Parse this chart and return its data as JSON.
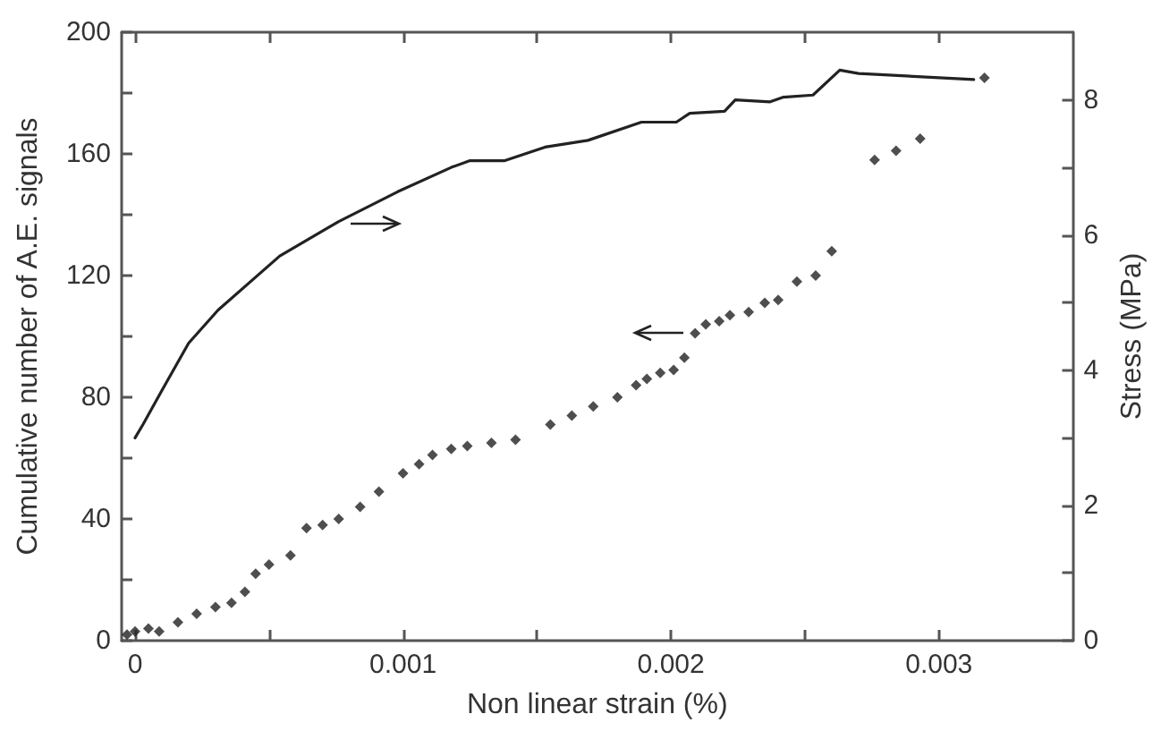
{
  "chart_data": {
    "type": "scatter",
    "xlabel": "Non linear strain (%)",
    "ylabel": "Cumulative number of A.E. signals",
    "y2label": "Stress (MPa)",
    "xlim": [
      -5e-05,
      0.0035
    ],
    "xticks": [
      0,
      {
        "value": 0.0005,
        "label": null
      },
      0.001,
      {
        "value": 0.0015,
        "label": null
      },
      0.002,
      {
        "value": 0.0025,
        "label": null
      },
      0.003
    ],
    "ylim": [
      0,
      200
    ],
    "yticks": [
      0,
      {
        "value": 20,
        "label": null
      },
      40,
      {
        "value": 60,
        "label": null
      },
      80,
      {
        "value": 100,
        "label": null
      },
      120,
      {
        "value": 140,
        "label": null
      },
      160,
      {
        "value": 180,
        "label": null
      },
      200
    ],
    "y2lim": [
      0,
      9
    ],
    "y2ticks": [
      0,
      {
        "value": 1,
        "label": null
      },
      2,
      {
        "value": 3,
        "label": null
      },
      4,
      {
        "value": 5,
        "label": null
      },
      6,
      {
        "value": 7,
        "label": null
      },
      8
    ],
    "grid": false,
    "series": [
      {
        "type": "scatter",
        "marker": "diamond",
        "color": "#222222",
        "x": [
          -3e-05,
          0,
          5e-05,
          9e-05,
          0.00016,
          0.00023,
          0.0003,
          0.00036,
          0.00041,
          0.00045,
          0.0005,
          0.00058,
          0.00064,
          0.0007,
          0.00076,
          0.00084,
          0.00091,
          0.001,
          0.00106,
          0.00111,
          0.00118,
          0.00124,
          0.00133,
          0.00142,
          0.00155,
          0.00163,
          0.00171,
          0.0018,
          0.00187,
          0.00191,
          0.00196,
          0.00201,
          0.00205,
          0.00209,
          0.00213,
          0.00218,
          0.00222,
          0.00229,
          0.00235,
          0.0024,
          0.00247,
          0.00254,
          0.0026,
          0.00276,
          0.00284,
          0.00293,
          0.00317
        ],
        "values": [
          2,
          3,
          4,
          3,
          6,
          8.8,
          11,
          12.4,
          16,
          22,
          25,
          28,
          37,
          38,
          40,
          44,
          49,
          55,
          58,
          61,
          63,
          64,
          65,
          66,
          71,
          74,
          77,
          80,
          84,
          86,
          88,
          89,
          93,
          101,
          104,
          105,
          107,
          108,
          111,
          112,
          118,
          120,
          128,
          158,
          161,
          165,
          185
        ]
      },
      {
        "type": "line",
        "axis": "y2",
        "line_style": "solid",
        "marker": "none",
        "color": "#222222",
        "x": [
          0,
          3e-05,
          0.0001,
          0.0002,
          0.00031,
          0.00054,
          0.00076,
          0.00098,
          0.00118,
          0.00125,
          0.00138,
          0.00153,
          0.00169,
          0.00189,
          0.00202,
          0.00207,
          0.0022,
          0.00224,
          0.00237,
          0.00242,
          0.00253,
          0.00263,
          0.0027,
          0.00313
        ],
        "values": [
          3.0,
          3.2,
          3.7,
          4.4,
          4.89,
          5.69,
          6.2,
          6.64,
          7.0,
          7.1,
          7.1,
          7.3,
          7.4,
          7.67,
          7.67,
          7.8,
          7.83,
          8.0,
          7.97,
          8.04,
          8.07,
          8.44,
          8.39,
          8.3
        ]
      }
    ]
  }
}
